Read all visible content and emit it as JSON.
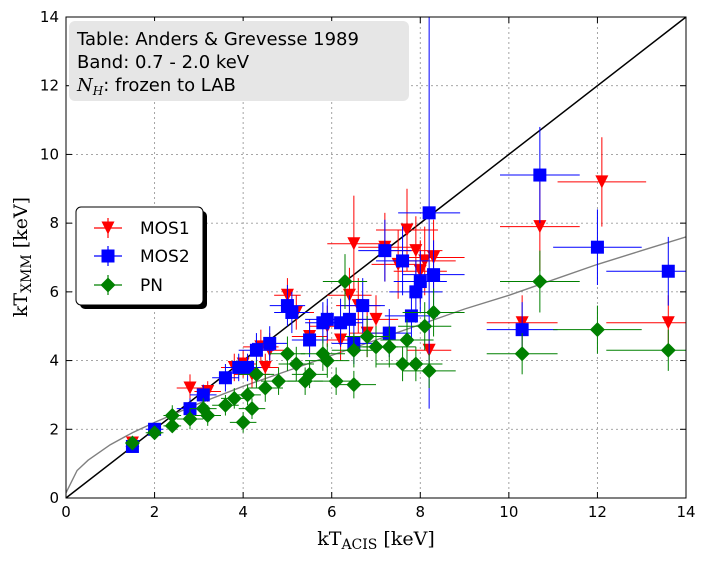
{
  "chart_data": {
    "type": "scatter",
    "xlabel": "kT_ACIS [keV]",
    "ylabel": "kT_XMM [keV]",
    "xlim": [
      0,
      14
    ],
    "ylim": [
      0,
      14
    ],
    "xticks": [
      0,
      2,
      4,
      6,
      8,
      10,
      12,
      14
    ],
    "yticks": [
      0,
      2,
      4,
      6,
      8,
      10,
      12,
      14
    ],
    "xtick_labels": [
      "0",
      "2",
      "4",
      "6",
      "8",
      "10",
      "12",
      "14"
    ],
    "ytick_labels": [
      "0",
      "2",
      "4",
      "6",
      "8",
      "10",
      "12",
      "14"
    ],
    "grid": true,
    "info_box": {
      "line1": "Table: Anders & Grevesse 1989",
      "line2": "Band: 0.7 - 2.0 keV",
      "line3_symbol": "N_H",
      "line3_text": ": frozen to LAB"
    },
    "legend": {
      "position": "center-left",
      "entries": [
        "MOS1",
        "MOS2",
        "PN"
      ]
    },
    "reference_lines": [
      {
        "name": "one-to-one",
        "color": "#000000",
        "points": [
          [
            0,
            0
          ],
          [
            14,
            14
          ]
        ]
      },
      {
        "name": "best-fit",
        "color": "#808080",
        "points": [
          [
            0,
            0.15
          ],
          [
            0.25,
            0.8
          ],
          [
            0.5,
            1.1
          ],
          [
            1,
            1.55
          ],
          [
            1.5,
            1.9
          ],
          [
            2,
            2.2
          ],
          [
            3,
            2.75
          ],
          [
            4,
            3.25
          ],
          [
            5,
            3.7
          ],
          [
            6,
            4.15
          ],
          [
            7,
            4.6
          ],
          [
            8,
            5.05
          ],
          [
            9,
            5.5
          ],
          [
            10,
            5.9
          ],
          [
            11,
            6.35
          ],
          [
            12,
            6.8
          ],
          [
            13,
            7.2
          ],
          [
            14,
            7.6
          ]
        ]
      }
    ],
    "series": [
      {
        "name": "MOS1",
        "color": "#ff0000",
        "marker": "triangle-down",
        "points": [
          {
            "x": 1.5,
            "y": 1.6,
            "xerr": 0.15,
            "yerr": 0.15
          },
          {
            "x": 2.8,
            "y": 3.2,
            "xerr": 0.3,
            "yerr": 0.4
          },
          {
            "x": 3.2,
            "y": 3.1,
            "xerr": 0.3,
            "yerr": 0.3
          },
          {
            "x": 3.8,
            "y": 3.8,
            "xerr": 0.3,
            "yerr": 0.4
          },
          {
            "x": 4.0,
            "y": 3.9,
            "xerr": 0.3,
            "yerr": 0.4
          },
          {
            "x": 4.2,
            "y": 3.6,
            "xerr": 0.4,
            "yerr": 0.4
          },
          {
            "x": 4.4,
            "y": 4.4,
            "xerr": 0.4,
            "yerr": 0.5
          },
          {
            "x": 4.5,
            "y": 3.8,
            "xerr": 0.3,
            "yerr": 0.4
          },
          {
            "x": 4.6,
            "y": 4.3,
            "xerr": 0.4,
            "yerr": 0.5
          },
          {
            "x": 5.0,
            "y": 5.9,
            "xerr": 0.3,
            "yerr": 0.5
          },
          {
            "x": 5.2,
            "y": 5.4,
            "xerr": 0.4,
            "yerr": 0.5
          },
          {
            "x": 5.5,
            "y": 4.7,
            "xerr": 0.4,
            "yerr": 0.5
          },
          {
            "x": 5.9,
            "y": 5.0,
            "xerr": 0.4,
            "yerr": 0.6
          },
          {
            "x": 6.2,
            "y": 4.6,
            "xerr": 0.4,
            "yerr": 0.6
          },
          {
            "x": 6.4,
            "y": 5.9,
            "xerr": 0.5,
            "yerr": 0.8
          },
          {
            "x": 6.5,
            "y": 7.4,
            "xerr": 0.6,
            "yerr": 1.4
          },
          {
            "x": 6.6,
            "y": 5.6,
            "xerr": 0.5,
            "yerr": 0.8
          },
          {
            "x": 6.8,
            "y": 4.8,
            "xerr": 0.4,
            "yerr": 0.7
          },
          {
            "x": 7.0,
            "y": 5.2,
            "xerr": 0.5,
            "yerr": 0.7
          },
          {
            "x": 7.2,
            "y": 7.3,
            "xerr": 0.6,
            "yerr": 1.0
          },
          {
            "x": 7.5,
            "y": 6.8,
            "xerr": 0.6,
            "yerr": 1.0
          },
          {
            "x": 7.7,
            "y": 7.8,
            "xerr": 0.7,
            "yerr": 1.2
          },
          {
            "x": 7.9,
            "y": 7.2,
            "xerr": 0.6,
            "yerr": 1.0
          },
          {
            "x": 8.0,
            "y": 6.6,
            "xerr": 0.6,
            "yerr": 0.9
          },
          {
            "x": 8.1,
            "y": 6.9,
            "xerr": 0.7,
            "yerr": 1.0
          },
          {
            "x": 8.2,
            "y": 4.3,
            "xerr": 0.5,
            "yerr": 0.6
          },
          {
            "x": 8.3,
            "y": 7.0,
            "xerr": 0.7,
            "yerr": 1.1
          },
          {
            "x": 10.3,
            "y": 5.1,
            "xerr": 0.8,
            "yerr": 0.8
          },
          {
            "x": 10.7,
            "y": 7.9,
            "xerr": 0.9,
            "yerr": 1.3
          },
          {
            "x": 12.1,
            "y": 9.2,
            "xerr": 1.0,
            "yerr": 1.3
          },
          {
            "x": 13.6,
            "y": 5.1,
            "xerr": 1.4,
            "yerr": 0.8
          }
        ]
      },
      {
        "name": "MOS2",
        "color": "#0000ff",
        "marker": "square",
        "points": [
          {
            "x": 1.5,
            "y": 1.5,
            "xerr": 0.15,
            "yerr": 0.15
          },
          {
            "x": 2.0,
            "y": 2.0,
            "xerr": 0.2,
            "yerr": 0.2
          },
          {
            "x": 2.8,
            "y": 2.6,
            "xerr": 0.3,
            "yerr": 0.3
          },
          {
            "x": 3.1,
            "y": 3.0,
            "xerr": 0.3,
            "yerr": 0.3
          },
          {
            "x": 3.6,
            "y": 3.5,
            "xerr": 0.3,
            "yerr": 0.4
          },
          {
            "x": 3.9,
            "y": 3.8,
            "xerr": 0.3,
            "yerr": 0.4
          },
          {
            "x": 4.1,
            "y": 3.8,
            "xerr": 0.3,
            "yerr": 0.4
          },
          {
            "x": 4.3,
            "y": 4.3,
            "xerr": 0.4,
            "yerr": 0.5
          },
          {
            "x": 4.6,
            "y": 4.5,
            "xerr": 0.4,
            "yerr": 0.5
          },
          {
            "x": 5.0,
            "y": 5.6,
            "xerr": 0.4,
            "yerr": 0.6
          },
          {
            "x": 5.1,
            "y": 5.4,
            "xerr": 0.4,
            "yerr": 0.6
          },
          {
            "x": 5.5,
            "y": 4.6,
            "xerr": 0.4,
            "yerr": 0.5
          },
          {
            "x": 5.8,
            "y": 5.1,
            "xerr": 0.4,
            "yerr": 0.6
          },
          {
            "x": 5.9,
            "y": 5.2,
            "xerr": 0.5,
            "yerr": 0.6
          },
          {
            "x": 6.2,
            "y": 5.1,
            "xerr": 0.5,
            "yerr": 0.7
          },
          {
            "x": 6.4,
            "y": 5.2,
            "xerr": 0.5,
            "yerr": 0.7
          },
          {
            "x": 6.5,
            "y": 4.5,
            "xerr": 0.5,
            "yerr": 0.6
          },
          {
            "x": 6.7,
            "y": 5.6,
            "xerr": 0.5,
            "yerr": 0.8
          },
          {
            "x": 7.2,
            "y": 7.2,
            "xerr": 0.6,
            "yerr": 0.9
          },
          {
            "x": 7.3,
            "y": 4.8,
            "xerr": 0.5,
            "yerr": 0.7
          },
          {
            "x": 7.6,
            "y": 6.9,
            "xerr": 0.6,
            "yerr": 1.0
          },
          {
            "x": 7.8,
            "y": 5.3,
            "xerr": 0.6,
            "yerr": 0.8
          },
          {
            "x": 7.9,
            "y": 6.0,
            "xerr": 0.6,
            "yerr": 0.9
          },
          {
            "x": 8.0,
            "y": 6.3,
            "xerr": 0.6,
            "yerr": 0.9
          },
          {
            "x": 8.2,
            "y": 8.3,
            "xerr": 0.7,
            "yerr": 5.7
          },
          {
            "x": 8.3,
            "y": 6.5,
            "xerr": 0.7,
            "yerr": 1.0
          },
          {
            "x": 10.3,
            "y": 4.9,
            "xerr": 0.8,
            "yerr": 0.8
          },
          {
            "x": 10.7,
            "y": 9.4,
            "xerr": 0.9,
            "yerr": 1.4
          },
          {
            "x": 12.0,
            "y": 7.3,
            "xerr": 1.0,
            "yerr": 1.1
          },
          {
            "x": 13.6,
            "y": 6.6,
            "xerr": 1.4,
            "yerr": 1.0
          }
        ]
      },
      {
        "name": "PN",
        "color": "#008000",
        "marker": "diamond",
        "points": [
          {
            "x": 1.5,
            "y": 1.6,
            "xerr": 0.15,
            "yerr": 0.15
          },
          {
            "x": 2.0,
            "y": 1.9,
            "xerr": 0.2,
            "yerr": 0.2
          },
          {
            "x": 2.4,
            "y": 2.1,
            "xerr": 0.2,
            "yerr": 0.2
          },
          {
            "x": 2.4,
            "y": 2.4,
            "xerr": 0.2,
            "yerr": 0.3
          },
          {
            "x": 2.8,
            "y": 2.3,
            "xerr": 0.3,
            "yerr": 0.3
          },
          {
            "x": 3.1,
            "y": 2.6,
            "xerr": 0.3,
            "yerr": 0.3
          },
          {
            "x": 3.2,
            "y": 2.4,
            "xerr": 0.3,
            "yerr": 0.3
          },
          {
            "x": 3.6,
            "y": 2.7,
            "xerr": 0.3,
            "yerr": 0.3
          },
          {
            "x": 3.8,
            "y": 2.9,
            "xerr": 0.3,
            "yerr": 0.3
          },
          {
            "x": 4.0,
            "y": 2.2,
            "xerr": 0.3,
            "yerr": 0.3
          },
          {
            "x": 4.1,
            "y": 3.0,
            "xerr": 0.3,
            "yerr": 0.3
          },
          {
            "x": 4.2,
            "y": 2.6,
            "xerr": 0.3,
            "yerr": 0.3
          },
          {
            "x": 4.3,
            "y": 3.6,
            "xerr": 0.4,
            "yerr": 0.4
          },
          {
            "x": 4.5,
            "y": 3.2,
            "xerr": 0.4,
            "yerr": 0.4
          },
          {
            "x": 4.8,
            "y": 3.4,
            "xerr": 0.4,
            "yerr": 0.4
          },
          {
            "x": 5.0,
            "y": 4.2,
            "xerr": 0.4,
            "yerr": 0.5
          },
          {
            "x": 5.2,
            "y": 3.9,
            "xerr": 0.4,
            "yerr": 0.5
          },
          {
            "x": 5.4,
            "y": 3.4,
            "xerr": 0.4,
            "yerr": 0.4
          },
          {
            "x": 5.5,
            "y": 3.6,
            "xerr": 0.4,
            "yerr": 0.4
          },
          {
            "x": 5.8,
            "y": 4.2,
            "xerr": 0.5,
            "yerr": 0.5
          },
          {
            "x": 5.9,
            "y": 4.0,
            "xerr": 0.5,
            "yerr": 0.5
          },
          {
            "x": 6.1,
            "y": 3.4,
            "xerr": 0.5,
            "yerr": 0.4
          },
          {
            "x": 6.3,
            "y": 6.3,
            "xerr": 0.5,
            "yerr": 0.8
          },
          {
            "x": 6.5,
            "y": 4.3,
            "xerr": 0.5,
            "yerr": 0.5
          },
          {
            "x": 6.5,
            "y": 3.3,
            "xerr": 0.5,
            "yerr": 0.4
          },
          {
            "x": 6.8,
            "y": 4.7,
            "xerr": 0.5,
            "yerr": 0.6
          },
          {
            "x": 7.0,
            "y": 4.4,
            "xerr": 0.5,
            "yerr": 0.6
          },
          {
            "x": 7.3,
            "y": 4.4,
            "xerr": 0.6,
            "yerr": 0.6
          },
          {
            "x": 7.6,
            "y": 3.9,
            "xerr": 0.6,
            "yerr": 0.5
          },
          {
            "x": 7.7,
            "y": 4.6,
            "xerr": 0.6,
            "yerr": 0.6
          },
          {
            "x": 7.9,
            "y": 3.9,
            "xerr": 0.6,
            "yerr": 0.5
          },
          {
            "x": 8.1,
            "y": 5.0,
            "xerr": 0.6,
            "yerr": 0.7
          },
          {
            "x": 8.2,
            "y": 3.7,
            "xerr": 0.6,
            "yerr": 0.5
          },
          {
            "x": 8.3,
            "y": 5.4,
            "xerr": 0.7,
            "yerr": 0.7
          },
          {
            "x": 10.3,
            "y": 4.2,
            "xerr": 0.8,
            "yerr": 0.6
          },
          {
            "x": 10.7,
            "y": 6.3,
            "xerr": 0.9,
            "yerr": 0.9
          },
          {
            "x": 12.0,
            "y": 4.9,
            "xerr": 1.0,
            "yerr": 0.7
          },
          {
            "x": 13.6,
            "y": 4.3,
            "xerr": 1.4,
            "yerr": 0.6
          }
        ]
      }
    ]
  }
}
